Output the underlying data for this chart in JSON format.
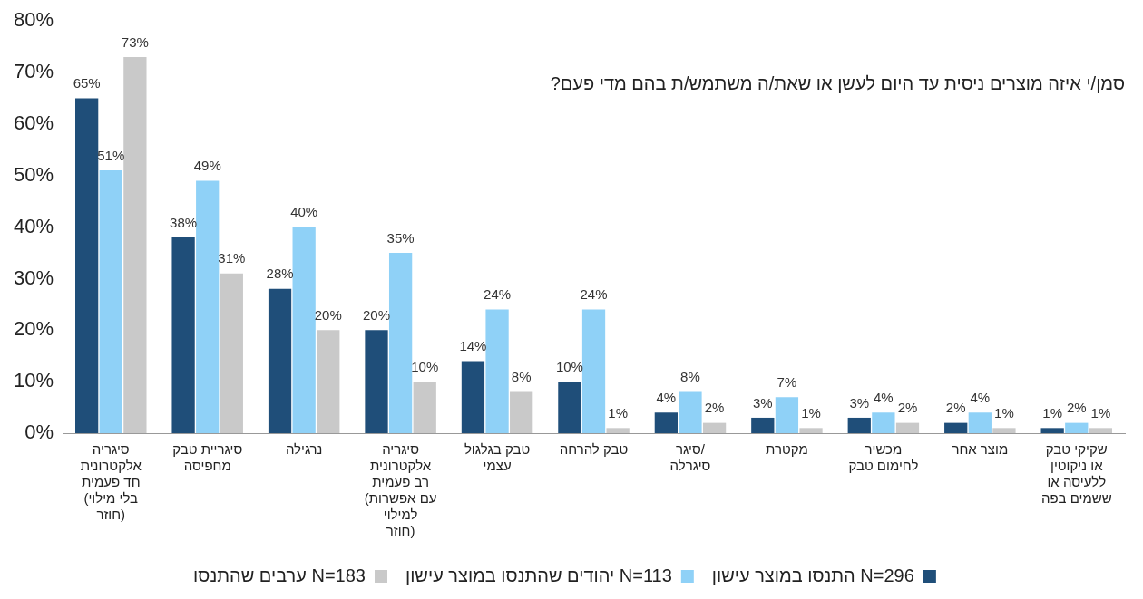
{
  "chart_data": {
    "type": "bar",
    "title": "סמן/י איזה מוצרים ניסית עד היום לעשן או שאת/ה משתמש/ת בהם מדי פעם?",
    "categories": [
      "סיגריה אלקטרונית חד פעמית (בלי מילוי חוזר)",
      "סיגריית טבק מחפיסה",
      "נרגילה",
      "סיגריה אלקטרונית רב פעמית (עם אפשרות למילוי חוזר)",
      "טבק בגלגול עצמי",
      "טבק להרחה",
      "סיגר/ סיגרלה",
      "מקטרת",
      "מכשיר לחימום טבק",
      "מוצר אחר",
      "שקיקי טבק או ניקוטין ללעיסה או ששמים בפה"
    ],
    "series": [
      {
        "name": "התנסו במוצר עישון N=296",
        "color": "#1f4e79",
        "values": [
          65,
          38,
          28,
          20,
          14,
          10,
          4,
          3,
          3,
          2,
          1
        ],
        "value_labels": [
          "65%",
          "38%",
          "28%",
          "20%",
          "14%",
          "10%",
          "4%",
          "3%",
          "3%",
          "2%",
          "1%"
        ]
      },
      {
        "name": "יהודים שהתנסו במוצר עישון N=113",
        "color": "#8fd1f7",
        "values": [
          51,
          49,
          40,
          35,
          24,
          24,
          8,
          7,
          4,
          4,
          2
        ],
        "value_labels": [
          "51%",
          "49%",
          "40%",
          "35%",
          "24%",
          "24%",
          "8%",
          "7%",
          "4%",
          "4%",
          "2%"
        ]
      },
      {
        "name": "ערבים שהתנסו N=183",
        "color": "#c9c9c9",
        "values": [
          73,
          31,
          20,
          10,
          8,
          1,
          2,
          1,
          2,
          1,
          1
        ],
        "value_labels": [
          "73%",
          "31%",
          "20%",
          "10%",
          "8%",
          "1%",
          "2%",
          "1%",
          "2%",
          "1%",
          "1%"
        ]
      }
    ],
    "ylim": [
      0,
      80
    ],
    "yticks": [
      {
        "value": 0,
        "label": "0%"
      },
      {
        "value": 10,
        "label": "10%"
      },
      {
        "value": 20,
        "label": "20%"
      },
      {
        "value": 30,
        "label": "30%"
      },
      {
        "value": 40,
        "label": "40%"
      },
      {
        "value": 50,
        "label": "50%"
      },
      {
        "value": 60,
        "label": "60%"
      },
      {
        "value": 70,
        "label": "70%"
      },
      {
        "value": 80,
        "label": "80%"
      }
    ],
    "grid": false,
    "legend": "bottom"
  }
}
